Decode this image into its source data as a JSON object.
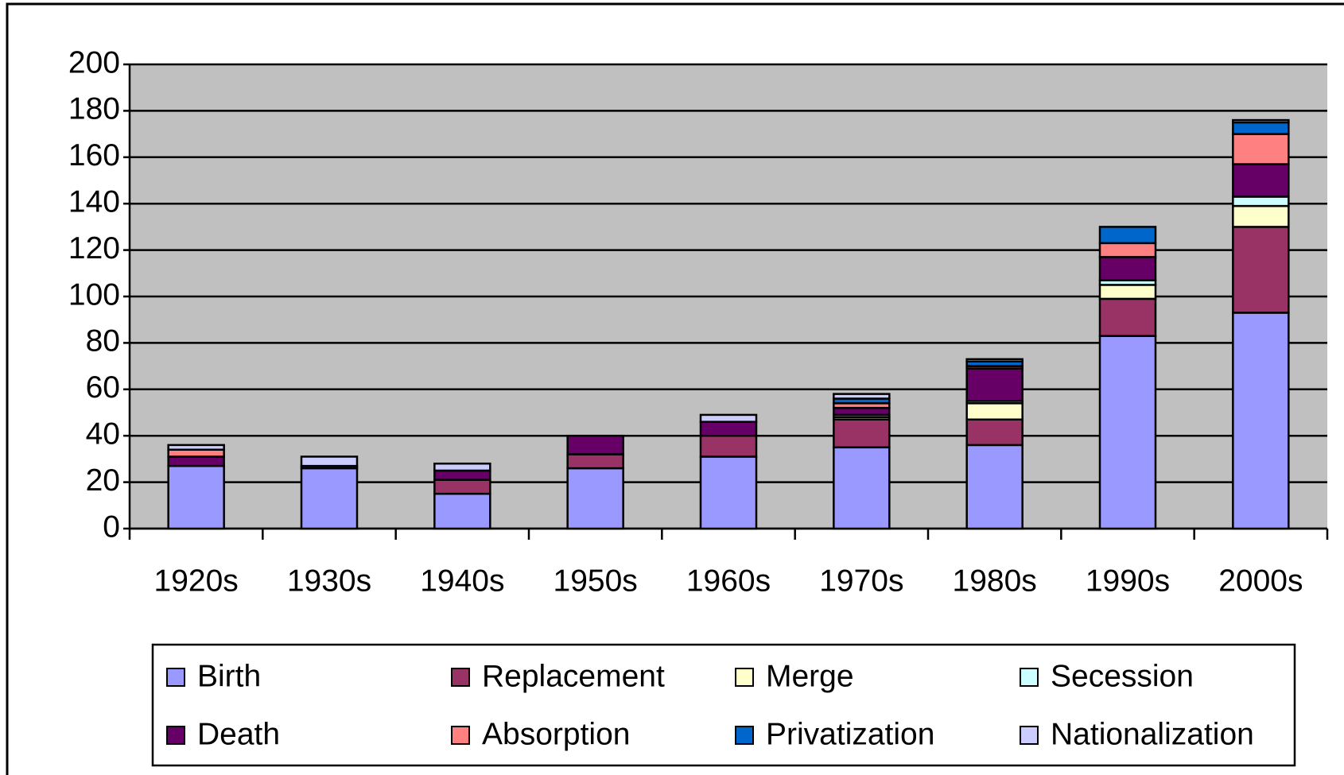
{
  "chart_data": {
    "type": "bar",
    "stacked": true,
    "categories": [
      "1920s",
      "1930s",
      "1940s",
      "1950s",
      "1960s",
      "1970s",
      "1980s",
      "1990s",
      "2000s"
    ],
    "series": [
      {
        "name": "Birth",
        "color": "#9999ff",
        "values": [
          27,
          26,
          15,
          26,
          31,
          35,
          36,
          83,
          93
        ]
      },
      {
        "name": "Replacement",
        "color": "#993366",
        "values": [
          0,
          0,
          6,
          6,
          9,
          12,
          11,
          16,
          37
        ]
      },
      {
        "name": "Merge",
        "color": "#ffffcc",
        "values": [
          0,
          0,
          0,
          0,
          0,
          1,
          7,
          6,
          9
        ]
      },
      {
        "name": "Secession",
        "color": "#ccffff",
        "values": [
          0,
          0,
          0,
          0,
          0,
          1,
          1,
          2,
          4
        ]
      },
      {
        "name": "Death",
        "color": "#660066",
        "values": [
          4,
          1,
          4,
          8,
          6,
          3,
          14,
          10,
          14
        ]
      },
      {
        "name": "Absorption",
        "color": "#ff8080",
        "values": [
          3,
          0,
          0,
          0,
          0,
          2,
          1,
          6,
          13
        ]
      },
      {
        "name": "Privatization",
        "color": "#0066cc",
        "values": [
          0,
          0,
          0,
          0,
          0,
          2,
          2,
          7,
          5
        ]
      },
      {
        "name": "Nationalization",
        "color": "#ccccff",
        "values": [
          2,
          4,
          3,
          0,
          3,
          2,
          1,
          0,
          1
        ]
      }
    ],
    "ylim": [
      0,
      200
    ],
    "yticks": [
      0,
      20,
      40,
      60,
      80,
      100,
      120,
      140,
      160,
      180,
      200
    ],
    "grid": true,
    "legend": "bottom",
    "plot_background": "#c0c0c0"
  }
}
